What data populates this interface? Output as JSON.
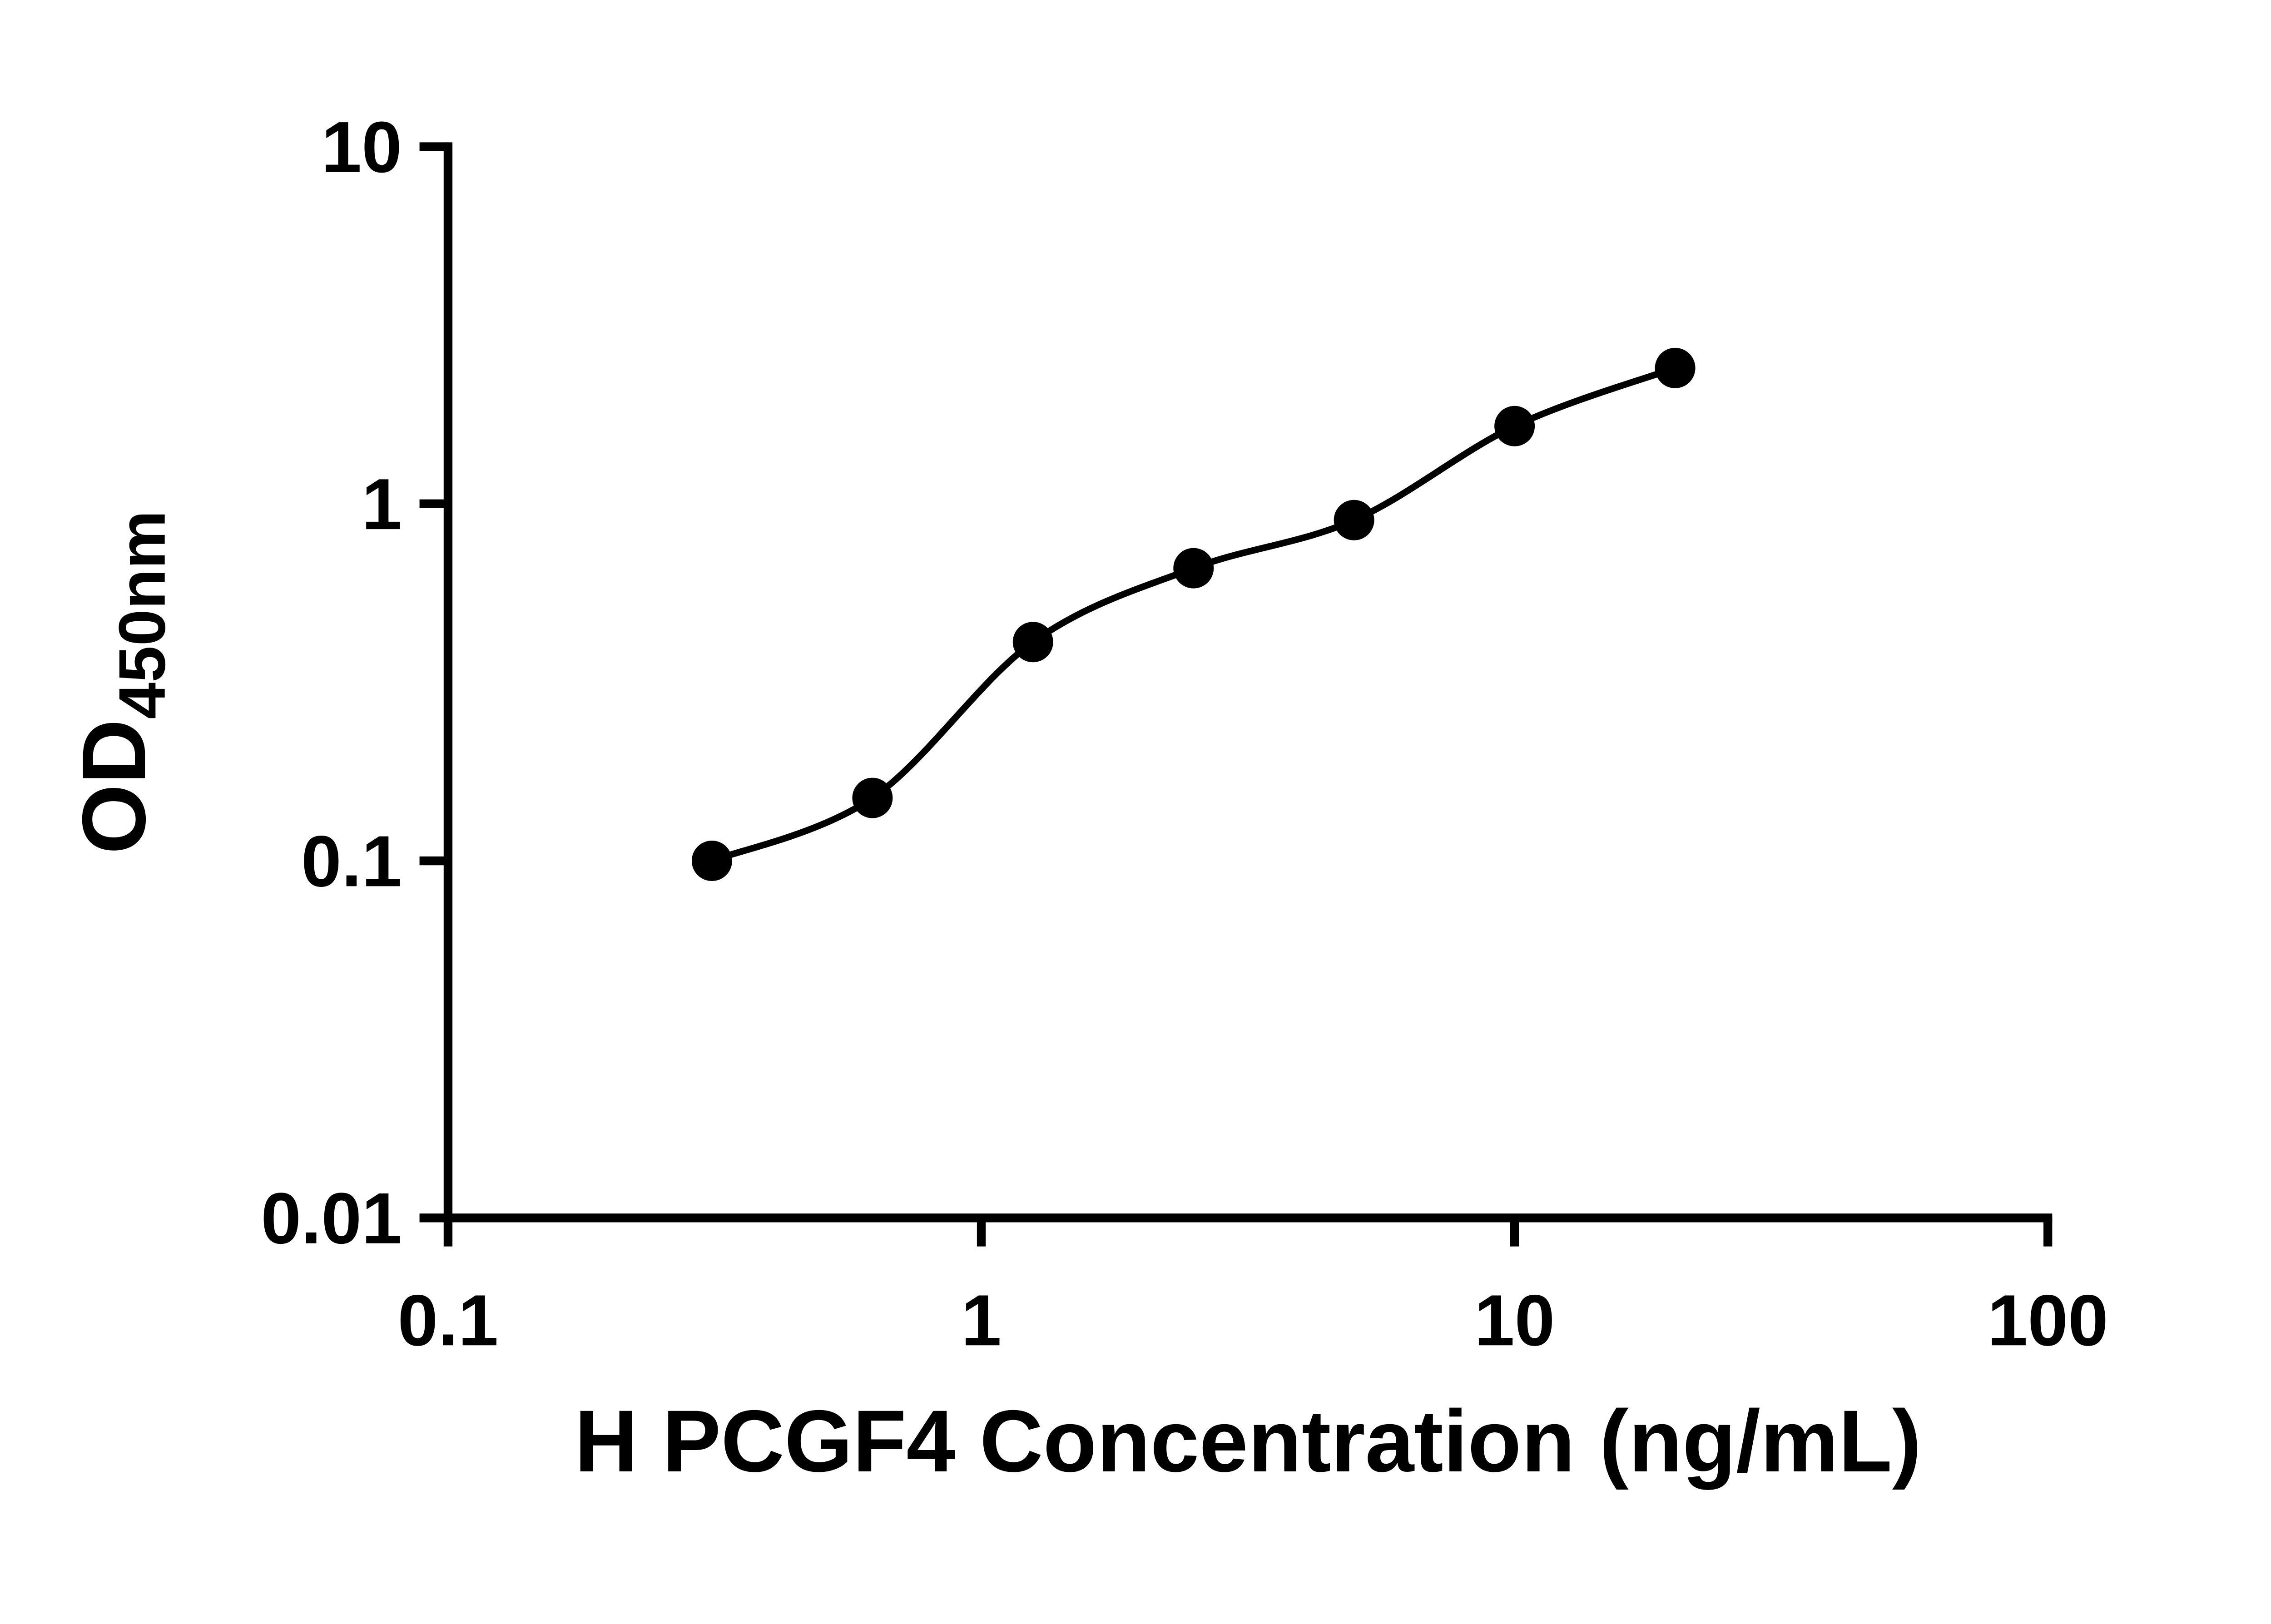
{
  "figure": {
    "background": "#ffffff",
    "ink": "#000000"
  },
  "chart_data": {
    "type": "scatter",
    "title": "",
    "xlabel": "H PCGF4 Concentration (ng/mL)",
    "ylabel_main": "OD",
    "ylabel_sub": "450nm",
    "x_scale": "log",
    "y_scale": "log",
    "xlim": [
      0.1,
      100
    ],
    "ylim": [
      0.01,
      10
    ],
    "x_tick_values": [
      0.1,
      1,
      10,
      100
    ],
    "x_tick_labels": [
      "0.1",
      "1",
      "10",
      "100"
    ],
    "y_tick_values": [
      0.01,
      0.1,
      1,
      10
    ],
    "y_tick_labels": [
      "0.01",
      "0.1",
      "1",
      "10"
    ],
    "grid": false,
    "legend": "none",
    "marker": "filled-circle",
    "marker_color": "#000000",
    "line_color": "#000000",
    "points": [
      {
        "x": 0.3125,
        "y": 0.1
      },
      {
        "x": 0.625,
        "y": 0.15
      },
      {
        "x": 1.25,
        "y": 0.41
      },
      {
        "x": 2.5,
        "y": 0.66
      },
      {
        "x": 5,
        "y": 0.9
      },
      {
        "x": 10,
        "y": 1.65
      },
      {
        "x": 20,
        "y": 2.4
      }
    ],
    "curve": "smooth-fit-through-points"
  }
}
